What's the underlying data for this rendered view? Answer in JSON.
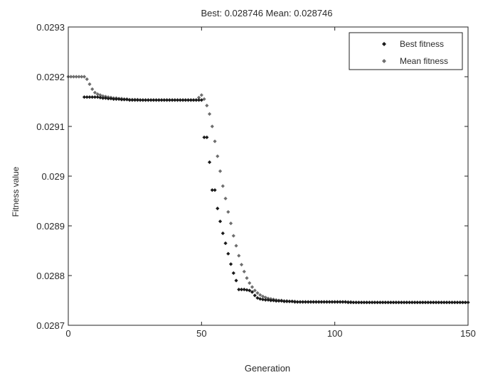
{
  "chart_data": {
    "type": "scatter",
    "title": "Best: 0.028746 Mean: 0.028746",
    "xlabel": "Generation",
    "ylabel": "Fitness value",
    "xlim": [
      0,
      150
    ],
    "ylim": [
      0.0287,
      0.0293
    ],
    "xticks": [
      0,
      50,
      100,
      150
    ],
    "xtick_labels": [
      "0",
      "50",
      "100",
      "150"
    ],
    "yticks": [
      0.0287,
      0.0288,
      0.0289,
      0.029,
      0.0291,
      0.0292,
      0.0293
    ],
    "ytick_labels": [
      "0.0287",
      "0.0288",
      "0.0289",
      "0.029",
      "0.0291",
      "0.0292",
      "0.0293"
    ],
    "grid": false,
    "legend_position": "top-right",
    "series": [
      {
        "name": "Best fitness",
        "color": "#1a1a1a",
        "marker": "diamond",
        "points": [
          [
            6,
            0.029159
          ],
          [
            7,
            0.029159
          ],
          [
            8,
            0.029159
          ],
          [
            9,
            0.029159
          ],
          [
            10,
            0.029159
          ],
          [
            11,
            0.029159
          ],
          [
            12,
            0.029158
          ],
          [
            13,
            0.029157
          ],
          [
            14,
            0.029157
          ],
          [
            15,
            0.029156
          ],
          [
            16,
            0.029156
          ],
          [
            17,
            0.029155
          ],
          [
            18,
            0.029155
          ],
          [
            19,
            0.029155
          ],
          [
            20,
            0.029154
          ],
          [
            21,
            0.029154
          ],
          [
            22,
            0.029154
          ],
          [
            23,
            0.029153
          ],
          [
            24,
            0.029153
          ],
          [
            25,
            0.029153
          ],
          [
            26,
            0.029153
          ],
          [
            27,
            0.029153
          ],
          [
            28,
            0.029153
          ],
          [
            29,
            0.029153
          ],
          [
            30,
            0.029153
          ],
          [
            31,
            0.029153
          ],
          [
            32,
            0.029153
          ],
          [
            33,
            0.029153
          ],
          [
            34,
            0.029153
          ],
          [
            35,
            0.029153
          ],
          [
            36,
            0.029153
          ],
          [
            37,
            0.029153
          ],
          [
            38,
            0.029153
          ],
          [
            39,
            0.029153
          ],
          [
            40,
            0.029153
          ],
          [
            41,
            0.029153
          ],
          [
            42,
            0.029153
          ],
          [
            43,
            0.029153
          ],
          [
            44,
            0.029153
          ],
          [
            45,
            0.029153
          ],
          [
            46,
            0.029153
          ],
          [
            47,
            0.029153
          ],
          [
            48,
            0.029153
          ],
          [
            49,
            0.029153
          ],
          [
            50,
            0.029153
          ],
          [
            51,
            0.029078
          ],
          [
            52,
            0.029078
          ],
          [
            53,
            0.029028
          ],
          [
            54,
            0.028972
          ],
          [
            55,
            0.028972
          ],
          [
            56,
            0.028935
          ],
          [
            57,
            0.028909
          ],
          [
            58,
            0.028885
          ],
          [
            59,
            0.028865
          ],
          [
            60,
            0.028844
          ],
          [
            61,
            0.028823
          ],
          [
            62,
            0.028805
          ],
          [
            63,
            0.02879
          ],
          [
            64,
            0.028772
          ],
          [
            65,
            0.028772
          ],
          [
            66,
            0.028772
          ],
          [
            67,
            0.028771
          ],
          [
            68,
            0.02877
          ],
          [
            69,
            0.028767
          ],
          [
            70,
            0.02876
          ],
          [
            71,
            0.028755
          ],
          [
            72,
            0.028753
          ],
          [
            73,
            0.028752
          ],
          [
            74,
            0.028751
          ],
          [
            75,
            0.028751
          ],
          [
            76,
            0.02875
          ],
          [
            77,
            0.02875
          ],
          [
            78,
            0.028749
          ],
          [
            79,
            0.028749
          ],
          [
            80,
            0.028749
          ],
          [
            81,
            0.028748
          ],
          [
            82,
            0.028748
          ],
          [
            83,
            0.028748
          ],
          [
            84,
            0.028748
          ],
          [
            85,
            0.028747
          ],
          [
            86,
            0.028747
          ],
          [
            87,
            0.028747
          ],
          [
            88,
            0.028747
          ],
          [
            89,
            0.028747
          ],
          [
            90,
            0.028747
          ],
          [
            91,
            0.028747
          ],
          [
            92,
            0.028747
          ],
          [
            93,
            0.028747
          ],
          [
            94,
            0.028747
          ],
          [
            95,
            0.028747
          ],
          [
            96,
            0.028747
          ],
          [
            97,
            0.028747
          ],
          [
            98,
            0.028747
          ],
          [
            99,
            0.028747
          ],
          [
            100,
            0.028747
          ],
          [
            101,
            0.028747
          ],
          [
            102,
            0.028747
          ],
          [
            103,
            0.028747
          ],
          [
            104,
            0.028747
          ],
          [
            105,
            0.028746
          ],
          [
            106,
            0.028746
          ],
          [
            107,
            0.028746
          ],
          [
            108,
            0.028746
          ],
          [
            109,
            0.028746
          ],
          [
            110,
            0.028746
          ],
          [
            111,
            0.028746
          ],
          [
            112,
            0.028746
          ],
          [
            113,
            0.028746
          ],
          [
            114,
            0.028746
          ],
          [
            115,
            0.028746
          ],
          [
            116,
            0.028746
          ],
          [
            117,
            0.028746
          ],
          [
            118,
            0.028746
          ],
          [
            119,
            0.028746
          ],
          [
            120,
            0.028746
          ],
          [
            121,
            0.028746
          ],
          [
            122,
            0.028746
          ],
          [
            123,
            0.028746
          ],
          [
            124,
            0.028746
          ],
          [
            125,
            0.028746
          ],
          [
            126,
            0.028746
          ],
          [
            127,
            0.028746
          ],
          [
            128,
            0.028746
          ],
          [
            129,
            0.028746
          ],
          [
            130,
            0.028746
          ],
          [
            131,
            0.028746
          ],
          [
            132,
            0.028746
          ],
          [
            133,
            0.028746
          ],
          [
            134,
            0.028746
          ],
          [
            135,
            0.028746
          ],
          [
            136,
            0.028746
          ],
          [
            137,
            0.028746
          ],
          [
            138,
            0.028746
          ],
          [
            139,
            0.028746
          ],
          [
            140,
            0.028746
          ],
          [
            141,
            0.028746
          ],
          [
            142,
            0.028746
          ],
          [
            143,
            0.028746
          ],
          [
            144,
            0.028746
          ],
          [
            145,
            0.028746
          ],
          [
            146,
            0.028746
          ],
          [
            147,
            0.028746
          ],
          [
            148,
            0.028746
          ],
          [
            149,
            0.028746
          ],
          [
            150,
            0.028746
          ]
        ]
      },
      {
        "name": "Mean fitness",
        "color": "#6e6e6e",
        "marker": "diamond",
        "points": [
          [
            0,
            0.0292
          ],
          [
            1,
            0.0292
          ],
          [
            2,
            0.0292
          ],
          [
            3,
            0.0292
          ],
          [
            4,
            0.0292
          ],
          [
            5,
            0.0292
          ],
          [
            6,
            0.0292
          ],
          [
            7,
            0.029195
          ],
          [
            8,
            0.029185
          ],
          [
            9,
            0.029175
          ],
          [
            10,
            0.029168
          ],
          [
            11,
            0.029165
          ],
          [
            12,
            0.029163
          ],
          [
            13,
            0.029161
          ],
          [
            14,
            0.02916
          ],
          [
            15,
            0.029159
          ],
          [
            16,
            0.029158
          ],
          [
            17,
            0.029157
          ],
          [
            18,
            0.029157
          ],
          [
            19,
            0.029156
          ],
          [
            20,
            0.029156
          ],
          [
            21,
            0.029155
          ],
          [
            22,
            0.029155
          ],
          [
            23,
            0.029154
          ],
          [
            24,
            0.029154
          ],
          [
            25,
            0.029154
          ],
          [
            26,
            0.029154
          ],
          [
            27,
            0.029153
          ],
          [
            28,
            0.029153
          ],
          [
            29,
            0.029153
          ],
          [
            30,
            0.029153
          ],
          [
            31,
            0.029153
          ],
          [
            32,
            0.029153
          ],
          [
            33,
            0.029153
          ],
          [
            34,
            0.029153
          ],
          [
            35,
            0.029153
          ],
          [
            36,
            0.029153
          ],
          [
            37,
            0.029153
          ],
          [
            38,
            0.029153
          ],
          [
            39,
            0.029153
          ],
          [
            40,
            0.029153
          ],
          [
            41,
            0.029153
          ],
          [
            42,
            0.029153
          ],
          [
            43,
            0.029153
          ],
          [
            44,
            0.029153
          ],
          [
            45,
            0.029153
          ],
          [
            46,
            0.029153
          ],
          [
            47,
            0.029153
          ],
          [
            48,
            0.029153
          ],
          [
            49,
            0.029158
          ],
          [
            50,
            0.029163
          ],
          [
            51,
            0.029155
          ],
          [
            52,
            0.029142
          ],
          [
            53,
            0.029125
          ],
          [
            54,
            0.0291
          ],
          [
            55,
            0.02907
          ],
          [
            56,
            0.02904
          ],
          [
            57,
            0.02901
          ],
          [
            58,
            0.02898
          ],
          [
            59,
            0.028955
          ],
          [
            60,
            0.028928
          ],
          [
            61,
            0.028905
          ],
          [
            62,
            0.02888
          ],
          [
            63,
            0.02886
          ],
          [
            64,
            0.02884
          ],
          [
            65,
            0.028822
          ],
          [
            66,
            0.028808
          ],
          [
            67,
            0.028795
          ],
          [
            68,
            0.028785
          ],
          [
            69,
            0.028777
          ],
          [
            70,
            0.02877
          ],
          [
            71,
            0.028765
          ],
          [
            72,
            0.028761
          ],
          [
            73,
            0.028758
          ],
          [
            74,
            0.028756
          ],
          [
            75,
            0.028754
          ],
          [
            76,
            0.028753
          ],
          [
            77,
            0.028752
          ],
          [
            78,
            0.028751
          ],
          [
            79,
            0.02875
          ],
          [
            80,
            0.02875
          ],
          [
            81,
            0.028749
          ],
          [
            82,
            0.028749
          ],
          [
            83,
            0.028748
          ],
          [
            84,
            0.028748
          ],
          [
            85,
            0.028748
          ],
          [
            86,
            0.028747
          ],
          [
            87,
            0.028747
          ],
          [
            88,
            0.028747
          ],
          [
            89,
            0.028747
          ],
          [
            90,
            0.028747
          ],
          [
            91,
            0.028747
          ],
          [
            92,
            0.028747
          ],
          [
            93,
            0.028747
          ],
          [
            94,
            0.028747
          ],
          [
            95,
            0.028747
          ],
          [
            96,
            0.028747
          ],
          [
            97,
            0.028747
          ],
          [
            98,
            0.028747
          ],
          [
            99,
            0.028747
          ],
          [
            100,
            0.028747
          ],
          [
            101,
            0.028747
          ],
          [
            102,
            0.028747
          ],
          [
            103,
            0.028747
          ],
          [
            104,
            0.028747
          ],
          [
            105,
            0.028747
          ],
          [
            106,
            0.028747
          ],
          [
            107,
            0.028746
          ],
          [
            108,
            0.028746
          ],
          [
            109,
            0.028746
          ],
          [
            110,
            0.028746
          ],
          [
            111,
            0.028746
          ],
          [
            112,
            0.028746
          ],
          [
            113,
            0.028746
          ],
          [
            114,
            0.028746
          ],
          [
            115,
            0.028746
          ],
          [
            116,
            0.028746
          ],
          [
            117,
            0.028746
          ],
          [
            118,
            0.028746
          ],
          [
            119,
            0.028746
          ],
          [
            120,
            0.028746
          ],
          [
            121,
            0.028746
          ],
          [
            122,
            0.028746
          ],
          [
            123,
            0.028746
          ],
          [
            124,
            0.028746
          ],
          [
            125,
            0.028746
          ],
          [
            126,
            0.028746
          ],
          [
            127,
            0.028746
          ],
          [
            128,
            0.028746
          ],
          [
            129,
            0.028746
          ],
          [
            130,
            0.028746
          ],
          [
            131,
            0.028746
          ],
          [
            132,
            0.028746
          ],
          [
            133,
            0.028746
          ],
          [
            134,
            0.028746
          ],
          [
            135,
            0.028746
          ],
          [
            136,
            0.028746
          ],
          [
            137,
            0.028746
          ],
          [
            138,
            0.028746
          ],
          [
            139,
            0.028746
          ],
          [
            140,
            0.028746
          ],
          [
            141,
            0.028746
          ],
          [
            142,
            0.028746
          ],
          [
            143,
            0.028746
          ],
          [
            144,
            0.028746
          ],
          [
            145,
            0.028746
          ],
          [
            146,
            0.028746
          ],
          [
            147,
            0.028746
          ],
          [
            148,
            0.028746
          ],
          [
            149,
            0.028746
          ],
          [
            150,
            0.028746
          ]
        ]
      }
    ]
  }
}
